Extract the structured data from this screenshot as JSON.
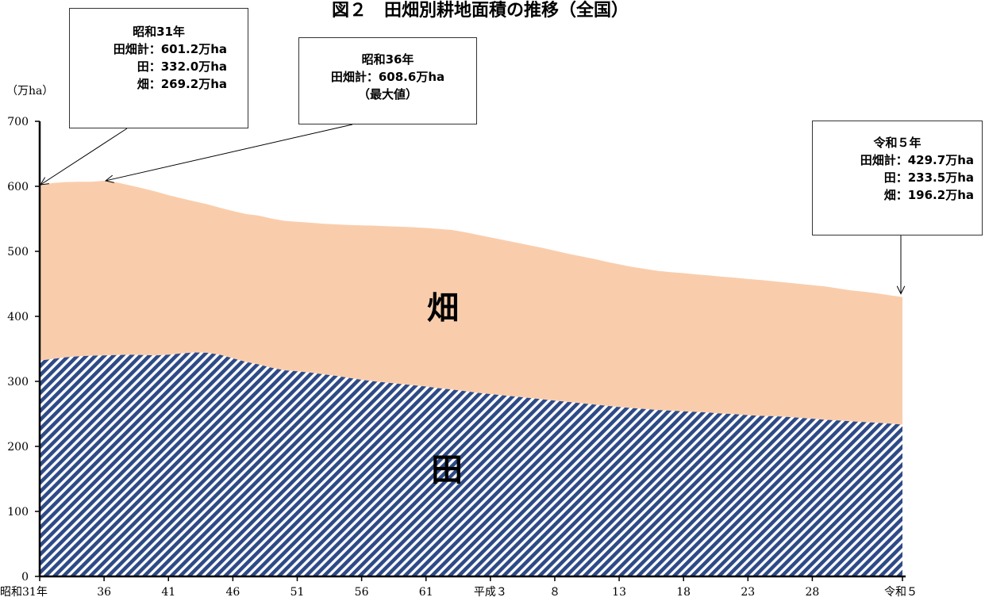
{
  "chart_data": {
    "type": "area",
    "title": "図２　田畑別耕地面積の推移（全国）",
    "unit_label": "（万ha）",
    "ylim": [
      0,
      700
    ],
    "yticks": [
      0,
      100,
      200,
      300,
      400,
      500,
      600,
      700
    ],
    "x_tick_labels": [
      "昭和31年",
      "36",
      "41",
      "46",
      "51",
      "56",
      "61",
      "平成３",
      "８",
      "13",
      "18",
      "23",
      "28",
      "令和５"
    ],
    "years": [
      1956,
      1957,
      1958,
      1959,
      1960,
      1961,
      1962,
      1963,
      1964,
      1965,
      1966,
      1967,
      1968,
      1969,
      1970,
      1971,
      1972,
      1973,
      1974,
      1975,
      1976,
      1977,
      1978,
      1979,
      1980,
      1981,
      1982,
      1983,
      1984,
      1985,
      1986,
      1987,
      1988,
      1989,
      1990,
      1991,
      1992,
      1993,
      1994,
      1995,
      1996,
      1997,
      1998,
      1999,
      2000,
      2001,
      2002,
      2003,
      2004,
      2005,
      2006,
      2007,
      2008,
      2009,
      2010,
      2011,
      2012,
      2013,
      2014,
      2015,
      2016,
      2017,
      2018,
      2019,
      2020,
      2021,
      2022,
      2023
    ],
    "series": [
      {
        "name": "田",
        "color": "#2e4a87",
        "values": [
          332.0,
          334.5,
          337.0,
          338.5,
          339.5,
          340.0,
          340.5,
          341.0,
          340.5,
          340.0,
          341.0,
          343.0,
          344.5,
          344.0,
          341.0,
          335.5,
          330.0,
          326.0,
          321.0,
          317.0,
          315.5,
          313.5,
          311.0,
          308.5,
          305.5,
          302.5,
          300.0,
          298.0,
          296.0,
          294.0,
          292.0,
          289.5,
          287.5,
          285.0,
          282.5,
          280.5,
          278.5,
          276.5,
          274.5,
          272.5,
          270.5,
          268.5,
          266.5,
          264.5,
          262.5,
          260.5,
          259.0,
          257.5,
          256.0,
          255.0,
          254.0,
          253.0,
          252.0,
          250.5,
          249.5,
          248.0,
          247.0,
          246.5,
          245.5,
          244.0,
          242.5,
          241.0,
          240.0,
          238.5,
          237.5,
          236.5,
          235.0,
          233.5
        ]
      },
      {
        "name": "畑",
        "color": "#f9cdac",
        "values": [
          269.2,
          270.5,
          269.5,
          268.5,
          267.5,
          268.6,
          265.5,
          260.5,
          256.5,
          252.0,
          245.5,
          238.5,
          232.5,
          228.5,
          226.0,
          226.5,
          227.5,
          229.0,
          229.5,
          230.0,
          230.0,
          230.5,
          231.5,
          233.0,
          235.0,
          237.5,
          239.5,
          240.5,
          242.0,
          243.0,
          244.0,
          245.0,
          245.5,
          244.5,
          243.0,
          241.0,
          239.0,
          237.0,
          235.0,
          233.0,
          230.5,
          228.0,
          226.0,
          224.0,
          221.5,
          219.5,
          217.0,
          215.5,
          214.0,
          213.0,
          212.5,
          211.5,
          211.0,
          210.5,
          210.0,
          209.5,
          209.0,
          207.5,
          206.5,
          206.0,
          205.5,
          205.0,
          203.0,
          201.5,
          200.5,
          199.0,
          197.5,
          196.2
        ]
      }
    ],
    "area_labels": {
      "hatake": "畑",
      "ta": "田"
    },
    "annotations": [
      {
        "id": "1956",
        "year": 1956,
        "lines": [
          "昭和31年",
          "田畑計：601.2万ha",
          "田：332.0万ha",
          "畑：269.2万ha"
        ]
      },
      {
        "id": "1961",
        "year": 1961,
        "lines": [
          "昭和36年",
          "田畑計：608.6万ha",
          "（最大値）"
        ]
      },
      {
        "id": "2023",
        "year": 2023,
        "lines": [
          "令和５年",
          "田畑計：429.7万ha",
          "田：233.5万ha",
          "畑：196.2万ha"
        ]
      }
    ]
  }
}
